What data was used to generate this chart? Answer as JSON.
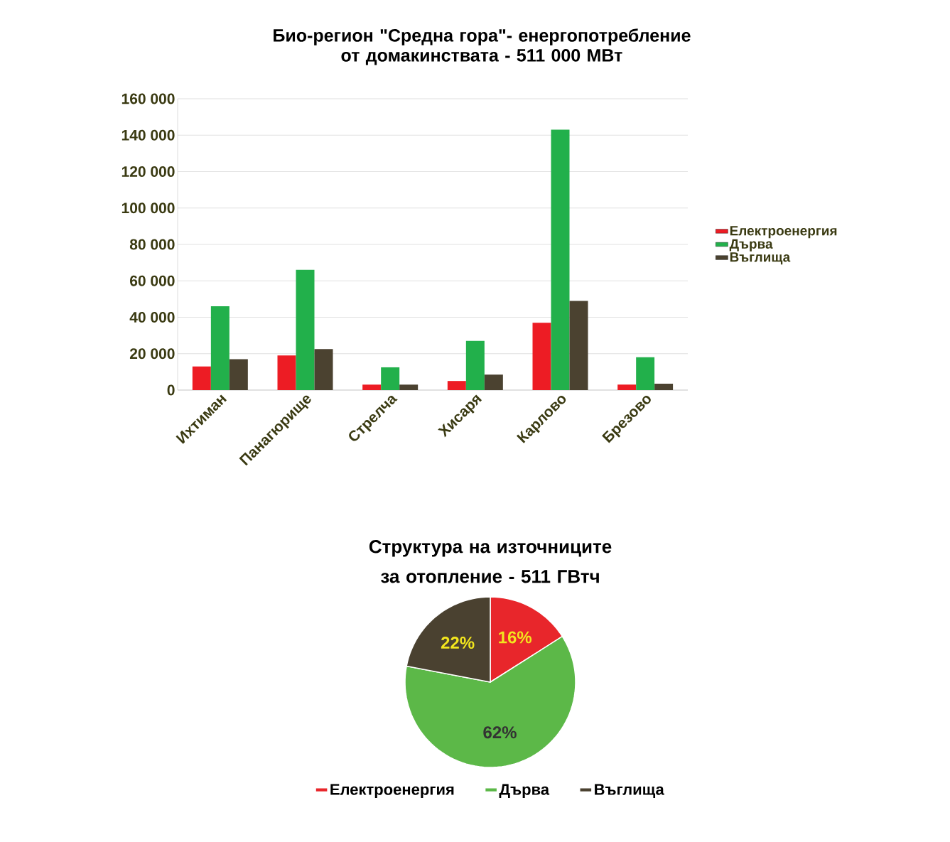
{
  "chart_data": [
    {
      "type": "bar",
      "title": "Био-регион \"Средна гора\"- енергопотребление от домакинствата - 511 000 МВт",
      "categories": [
        "Ихтиман",
        "Панагюрище",
        "Стрелча",
        "Хисаря",
        "Карлово",
        "Брезово"
      ],
      "series": [
        {
          "name": "Електроенергия",
          "color": "#ed1c24",
          "values": [
            13000,
            19000,
            3000,
            5000,
            37000,
            3000
          ]
        },
        {
          "name": "Дърва",
          "color": "#22b04b",
          "values": [
            46000,
            66000,
            12500,
            27000,
            143000,
            18000
          ]
        },
        {
          "name": "Въглища",
          "color": "#4b4230",
          "values": [
            17000,
            22500,
            3000,
            8500,
            49000,
            3500
          ]
        }
      ],
      "ylim": [
        0,
        160000
      ],
      "yticks": [
        {
          "value": 0,
          "label": "0"
        },
        {
          "value": 20000,
          "label": "20 000"
        },
        {
          "value": 40000,
          "label": "40 000"
        },
        {
          "value": 60000,
          "label": "60 000"
        },
        {
          "value": 80000,
          "label": "80 000"
        },
        {
          "value": 100000,
          "label": "100 000"
        },
        {
          "value": 120000,
          "label": "120 000"
        },
        {
          "value": 140000,
          "label": "140 000"
        },
        {
          "value": 160000,
          "label": "160 000"
        }
      ],
      "grid": "y",
      "legend": "right"
    },
    {
      "type": "pie",
      "title": "Структура на източниците за отопление - 511 ГВтч",
      "categories": [
        "Електроенергия",
        "Дърва",
        "Въглища"
      ],
      "values": [
        16,
        62,
        22
      ],
      "colors": [
        "#e8262b",
        "#5cb848",
        "#4a4130"
      ],
      "value_labels": [
        "16%",
        "62%",
        "22%"
      ],
      "legend": "bottom"
    }
  ]
}
